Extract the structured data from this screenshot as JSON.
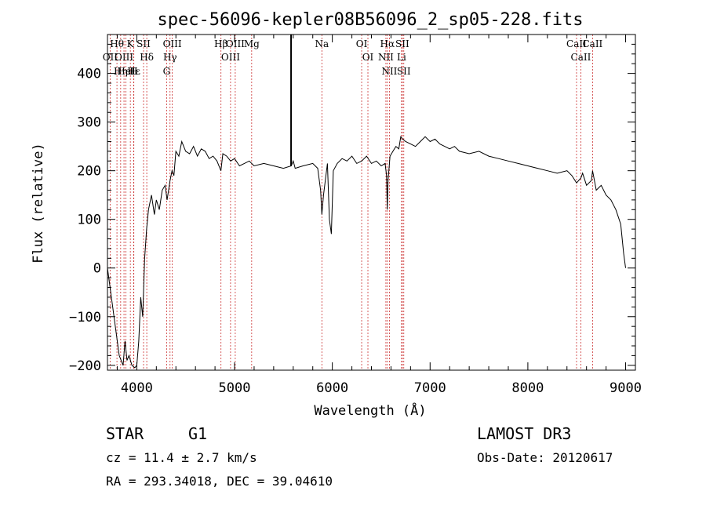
{
  "chart_data": {
    "type": "line",
    "title": "spec-56096-kepler08B56096_2_sp05-228.fits",
    "xlabel": "Wavelength (Å)",
    "ylabel": "Flux (relative)",
    "xlim": [
      3700,
      9100
    ],
    "ylim": [
      -210,
      480
    ],
    "xticks": [
      4000,
      5000,
      6000,
      7000,
      8000,
      9000
    ],
    "yticks": [
      -200,
      -100,
      0,
      100,
      200,
      300,
      400
    ],
    "series": [
      {
        "name": "flux",
        "x": [
          3700,
          3740,
          3780,
          3820,
          3860,
          3880,
          3900,
          3920,
          3950,
          3980,
          4000,
          4020,
          4040,
          4060,
          4080,
          4100,
          4120,
          4150,
          4180,
          4200,
          4230,
          4260,
          4290,
          4310,
          4340,
          4360,
          4380,
          4400,
          4430,
          4460,
          4500,
          4540,
          4580,
          4620,
          4660,
          4700,
          4740,
          4780,
          4820,
          4860,
          4880,
          4920,
          4960,
          5000,
          5050,
          5100,
          5150,
          5200,
          5300,
          5400,
          5500,
          5580,
          5600,
          5620,
          5700,
          5800,
          5850,
          5880,
          5893,
          5910,
          5950,
          5970,
          5990,
          6010,
          6050,
          6100,
          6150,
          6200,
          6250,
          6300,
          6350,
          6400,
          6450,
          6500,
          6540,
          6555,
          6562,
          6570,
          6590,
          6620,
          6650,
          6680,
          6700,
          6720,
          6750,
          6800,
          6850,
          6900,
          6950,
          7000,
          7050,
          7100,
          7150,
          7200,
          7250,
          7300,
          7400,
          7500,
          7600,
          7700,
          7800,
          7900,
          8000,
          8100,
          8200,
          8300,
          8400,
          8450,
          8498,
          8542,
          8560,
          8600,
          8650,
          8662,
          8700,
          8750,
          8800,
          8850,
          8900,
          8950,
          8980,
          9000
        ],
        "y": [
          0,
          -60,
          -120,
          -180,
          -200,
          -150,
          -190,
          -180,
          -200,
          -205,
          -200,
          -150,
          -60,
          -100,
          20,
          80,
          120,
          150,
          110,
          140,
          120,
          160,
          170,
          140,
          180,
          200,
          190,
          240,
          230,
          260,
          240,
          235,
          250,
          230,
          245,
          240,
          225,
          230,
          220,
          200,
          235,
          230,
          220,
          225,
          210,
          215,
          220,
          210,
          215,
          210,
          205,
          210,
          220,
          205,
          210,
          215,
          205,
          160,
          110,
          150,
          215,
          100,
          70,
          200,
          215,
          225,
          220,
          230,
          215,
          220,
          230,
          215,
          220,
          210,
          215,
          190,
          120,
          180,
          230,
          240,
          250,
          245,
          270,
          265,
          260,
          255,
          250,
          260,
          270,
          260,
          265,
          255,
          250,
          245,
          250,
          240,
          235,
          240,
          230,
          225,
          220,
          215,
          210,
          205,
          200,
          195,
          200,
          190,
          175,
          185,
          195,
          170,
          180,
          200,
          160,
          170,
          150,
          140,
          120,
          90,
          30,
          0
        ]
      }
    ],
    "spike": {
      "x": 5578,
      "y": 480
    },
    "emission_lines": [
      {
        "label": "Hθ",
        "x": 3797
      },
      {
        "label": "OII",
        "x": 3727
      },
      {
        "label": "OIII",
        "x": 3869
      },
      {
        "label": "K",
        "x": 3934
      },
      {
        "label": "HeI",
        "x": 3889
      },
      {
        "label": "Hε",
        "x": 3970
      },
      {
        "label": "Hη",
        "x": 3835
      },
      {
        "label": "H",
        "x": 3968
      },
      {
        "label": "SII",
        "x": 4069
      },
      {
        "label": "Hδ",
        "x": 4102
      },
      {
        "label": "OIII",
        "x": 4363
      },
      {
        "label": "Hγ",
        "x": 4340
      },
      {
        "label": "G",
        "x": 4305
      },
      {
        "label": "Hβ",
        "x": 4861
      },
      {
        "label": "OIII",
        "x": 4959
      },
      {
        "label": "OIII",
        "x": 5007
      },
      {
        "label": "Mg",
        "x": 5175
      },
      {
        "label": "Na",
        "x": 5893
      },
      {
        "label": "OI",
        "x": 6300
      },
      {
        "label": "OI",
        "x": 6364
      },
      {
        "label": "Hα",
        "x": 6563
      },
      {
        "label": "NII",
        "x": 6548
      },
      {
        "label": "NII",
        "x": 6584
      },
      {
        "label": "SII",
        "x": 6716
      },
      {
        "label": "Li",
        "x": 6708
      },
      {
        "label": "SII",
        "x": 6731
      },
      {
        "label": "CaII",
        "x": 8498
      },
      {
        "label": "CaII",
        "x": 8542
      },
      {
        "label": "CaII",
        "x": 8662
      }
    ]
  },
  "info": {
    "class": "STAR",
    "subclass": "G1",
    "survey": "LAMOST DR3",
    "cz": "cz = 11.4 ± 2.7 km/s",
    "obs_date": "Obs-Date: 20120617",
    "radec": "RA = 293.34018, DEC =  39.04610"
  },
  "colors": {
    "line": "#000000",
    "marker": "#cc3333"
  }
}
